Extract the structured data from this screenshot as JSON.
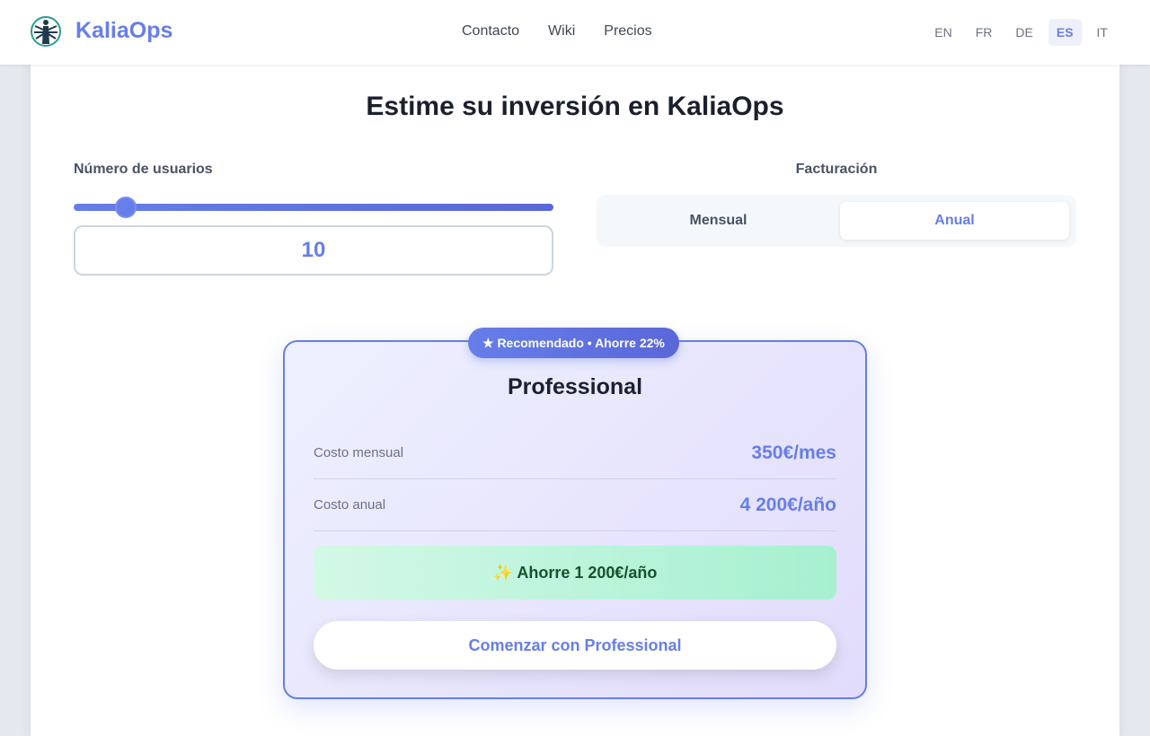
{
  "header": {
    "brand": "KaliaOps",
    "nav": [
      "Contacto",
      "Wiki",
      "Precios"
    ],
    "languages": [
      "EN",
      "FR",
      "DE",
      "ES",
      "IT"
    ],
    "active_language": "ES"
  },
  "calculator": {
    "title": "Estime su inversión en KaliaOps",
    "users_label": "Número de usuarios",
    "users_value": "10",
    "billing_label": "Facturación",
    "billing_options": [
      "Mensual",
      "Anual"
    ],
    "billing_selected": "Anual"
  },
  "plan": {
    "badge": "★ Recomendado • Ahorre 22%",
    "name": "Professional",
    "monthly_label": "Costo mensual",
    "monthly_value": "350€/mes",
    "annual_label": "Costo anual",
    "annual_value": "4 200€/año",
    "savings": "✨ Ahorre 1 200€/año",
    "cta": "Comenzar con Professional"
  },
  "colors": {
    "accent": "#667eea",
    "savings_text": "#14532d"
  }
}
